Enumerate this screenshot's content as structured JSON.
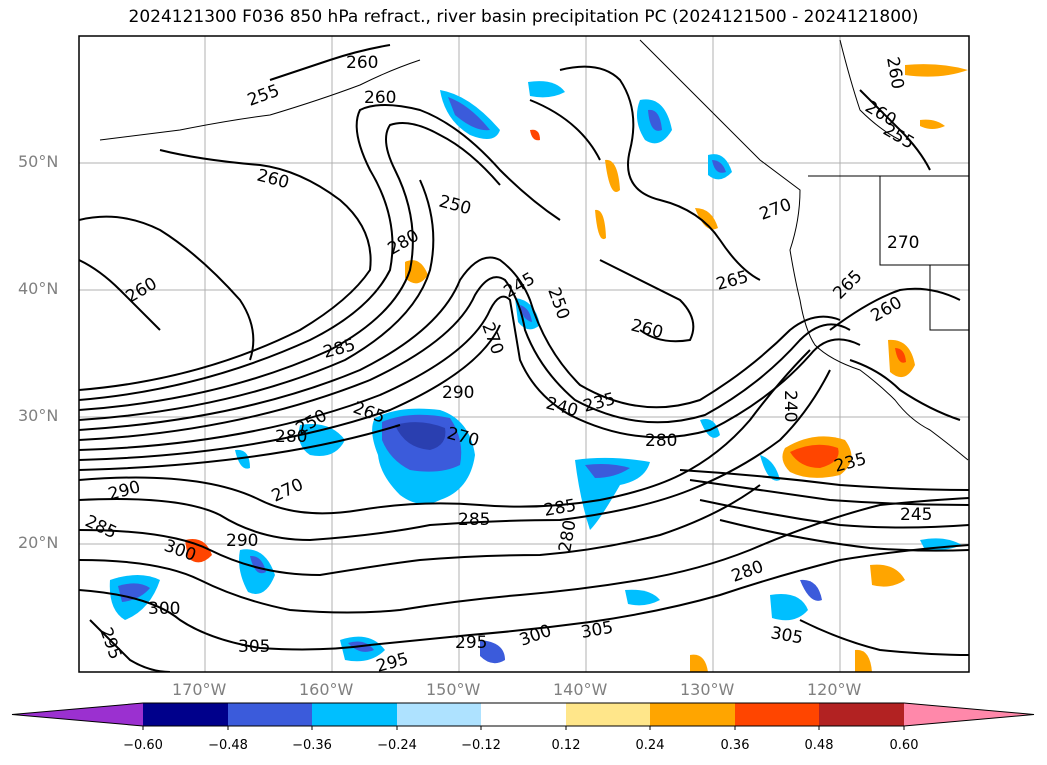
{
  "title": "2024121300 F036 850 hPa refract., river basin precipitation PC (2024121500 - 2024121800)",
  "latitude_labels": [
    "50°N",
    "40°N",
    "30°N",
    "20°N"
  ],
  "longitude_labels": [
    "170°W",
    "160°W",
    "150°W",
    "140°W",
    "130°W",
    "120°W"
  ],
  "colorbar": {
    "ticks": [
      "−0.60",
      "−0.48",
      "−0.36",
      "−0.24",
      "−0.12",
      "0.12",
      "0.24",
      "0.36",
      "0.48",
      "0.60"
    ],
    "colors": [
      "#9b30d0",
      "#00008b",
      "#3b5bdb",
      "#00bfff",
      "#aee2ff",
      "#ffffff",
      "#ffe68a",
      "#ffa500",
      "#ff4500",
      "#b22222",
      "#ff88aa"
    ]
  },
  "contour_labels": [
    "260",
    "255",
    "260",
    "260",
    "250",
    "280",
    "260",
    "245",
    "250",
    "270",
    "260",
    "285",
    "290",
    "240",
    "235",
    "280",
    "265",
    "250",
    "270",
    "280",
    "290",
    "285",
    "270",
    "285",
    "280",
    "300",
    "290",
    "300",
    "295",
    "305",
    "295",
    "295",
    "300",
    "305",
    "280",
    "285",
    "305",
    "235",
    "245",
    "240",
    "260",
    "265",
    "270",
    "265",
    "260",
    "270",
    "260",
    "255"
  ]
}
